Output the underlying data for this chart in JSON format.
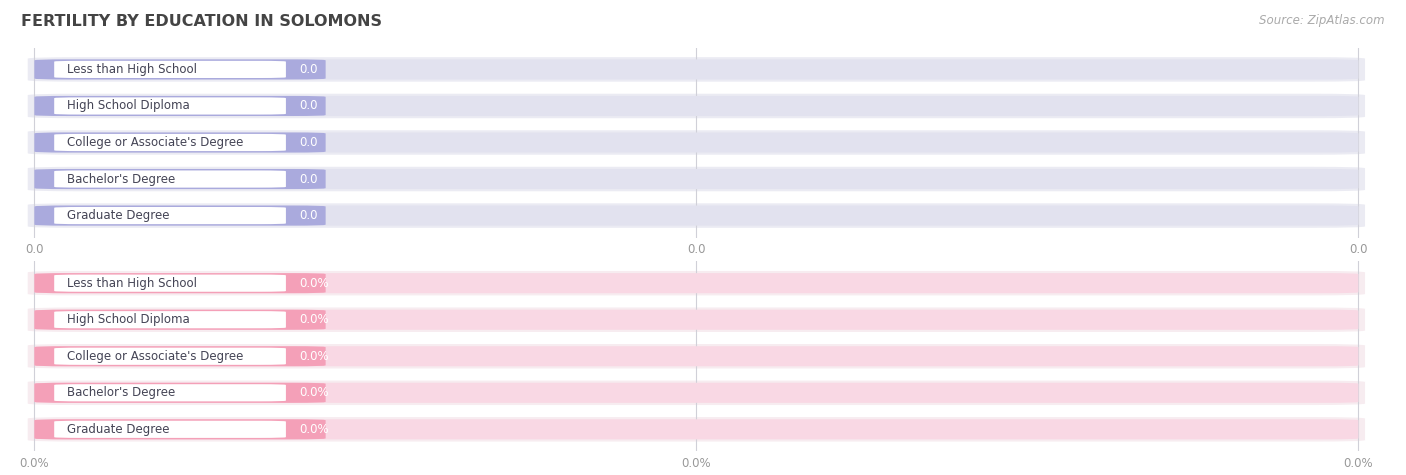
{
  "title": "FERTILITY BY EDUCATION IN SOLOMONS",
  "source": "Source: ZipAtlas.com",
  "categories": [
    "Less than High School",
    "High School Diploma",
    "College or Associate's Degree",
    "Bachelor's Degree",
    "Graduate Degree"
  ],
  "values_top": [
    0.0,
    0.0,
    0.0,
    0.0,
    0.0
  ],
  "values_bottom": [
    0.0,
    0.0,
    0.0,
    0.0,
    0.0
  ],
  "bar_color_top": "#aaaadd",
  "bar_color_bottom": "#f4a0b8",
  "bar_bg_color_top": "#e2e2ef",
  "bar_bg_color_bottom": "#f9d8e4",
  "row_bg_top": "#ebebf3",
  "row_bg_bottom": "#f7ecf0",
  "label_color": "#444455",
  "value_color_top": "#7777aa",
  "value_color_bottom": "#cc6688",
  "dot_color_top": "#8888cc",
  "dot_color_bottom": "#f07090",
  "grid_color": "#d0d0d8",
  "background_color": "#ffffff",
  "title_color": "#444444",
  "source_color": "#aaaaaa",
  "xtick_labels_top": [
    "0.0",
    "0.0",
    "0.0"
  ],
  "xtick_labels_bottom": [
    "0.0%",
    "0.0%",
    "0.0%"
  ],
  "figsize": [
    14.06,
    4.75
  ],
  "dpi": 100
}
